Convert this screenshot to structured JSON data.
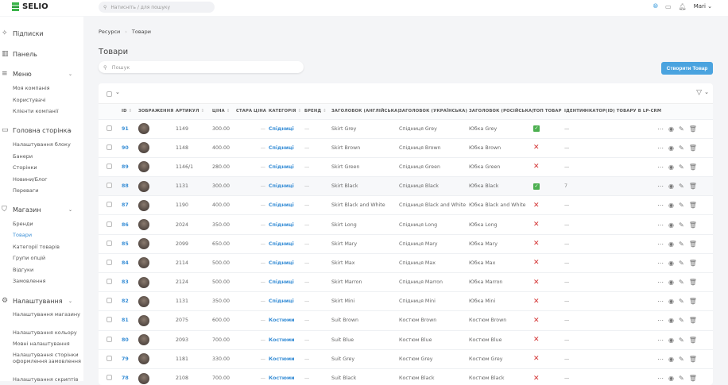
{
  "header": {
    "brand": "SELIO",
    "search_placeholder": "Натисніть / для пошуку",
    "user": "Mari"
  },
  "sidebar": {
    "subscriptions": "Підписки",
    "dashboard": "Панель",
    "menu": {
      "label": "Меню",
      "items": [
        "Моя компанія",
        "Користувачі",
        "Клієнти компанії"
      ]
    },
    "home": {
      "label": "Головна сторінка",
      "items": [
        "Налаштування блоку",
        "Банери",
        "Сторінки",
        "Новини/Блог",
        "Переваги"
      ]
    },
    "shop": {
      "label": "Магазин",
      "items": [
        "Бренди",
        "Товари",
        "Категорії товарів",
        "Групи опцій",
        "Відгуки",
        "Замовлення"
      ],
      "active": "Товари"
    },
    "settings": {
      "label": "Налаштування",
      "items": [
        "Налаштування магазину",
        "Налаштування кольору",
        "Мовні налаштування",
        "Налаштування сторінки оформлення замовлення",
        "Налаштування скриптів"
      ]
    }
  },
  "breadcrumb": [
    "Ресурси",
    "Товари"
  ],
  "page_title": "Товари",
  "search_placeholder": "Пошук",
  "create_button": "Створити Товар",
  "table": {
    "columns": [
      "ID",
      "ЗОБРАЖЕННЯ",
      "АРТИКУЛ",
      "ЦІНА",
      "СТАРА ЦІНА",
      "КАТЕГОРІЯ",
      "БРЕНД",
      "ЗАГОЛОВОК (АНГЛІЙСЬКА)",
      "ЗАГОЛОВОК (УКРАЇНСЬКА)",
      "ЗАГОЛОВОК (РОСІЙСЬКА)",
      "ТОП ТОВАР",
      "ІДЕНТИФІКАТОР(ID) ТОВАРУ В LP-CRM"
    ],
    "rows": [
      {
        "id": "91",
        "sku": "1149",
        "price": "300.00",
        "old": "—",
        "cat": "Спідниці",
        "brand": "—",
        "en": "Skirt Grey",
        "ua": "Спідниця Grey",
        "ru": "Юбка Grey",
        "top": true,
        "crm": "—"
      },
      {
        "id": "90",
        "sku": "1148",
        "price": "400.00",
        "old": "—",
        "cat": "Спідниці",
        "brand": "—",
        "en": "Skirt Brown",
        "ua": "Спідниця Brown",
        "ru": "Юбка Brown",
        "top": false,
        "crm": "—"
      },
      {
        "id": "89",
        "sku": "1146/1",
        "price": "280.00",
        "old": "—",
        "cat": "Спідниці",
        "brand": "—",
        "en": "Skirt Green",
        "ua": "Спідниця Green",
        "ru": "Юбка Green",
        "top": false,
        "crm": "—"
      },
      {
        "id": "88",
        "sku": "1131",
        "price": "300.00",
        "old": "—",
        "cat": "Спідниці",
        "brand": "—",
        "en": "Skirt Black",
        "ua": "Спідниця Black",
        "ru": "Юбка Black",
        "top": true,
        "crm": "7"
      },
      {
        "id": "87",
        "sku": "1190",
        "price": "400.00",
        "old": "—",
        "cat": "Спідниці",
        "brand": "—",
        "en": "Skirt Black and White",
        "ua": "Спідниця Black and White",
        "ru": "Юбка Black and White",
        "top": false,
        "crm": "—"
      },
      {
        "id": "86",
        "sku": "2024",
        "price": "350.00",
        "old": "—",
        "cat": "Спідниці",
        "brand": "—",
        "en": "Skirt Long",
        "ua": "Спідниця Long",
        "ru": "Юбка Long",
        "top": false,
        "crm": "—"
      },
      {
        "id": "85",
        "sku": "2099",
        "price": "650.00",
        "old": "—",
        "cat": "Спідниці",
        "brand": "—",
        "en": "Skirt Mary",
        "ua": "Спідниця Mary",
        "ru": "Юбка Mary",
        "top": false,
        "crm": "—"
      },
      {
        "id": "84",
        "sku": "2114",
        "price": "500.00",
        "old": "—",
        "cat": "Спідниці",
        "brand": "—",
        "en": "Skirt Max",
        "ua": "Спідниця Max",
        "ru": "Юбка Max",
        "top": false,
        "crm": "—"
      },
      {
        "id": "83",
        "sku": "2124",
        "price": "500.00",
        "old": "—",
        "cat": "Спідниці",
        "brand": "—",
        "en": "Skirt Marron",
        "ua": "Спідниця Marron",
        "ru": "Юбка Marron",
        "top": false,
        "crm": "—"
      },
      {
        "id": "82",
        "sku": "1131",
        "price": "350.00",
        "old": "—",
        "cat": "Спідниці",
        "brand": "—",
        "en": "Skirt Mini",
        "ua": "Спідниця Mini",
        "ru": "Юбка Mini",
        "top": false,
        "crm": "—"
      },
      {
        "id": "81",
        "sku": "2075",
        "price": "600.00",
        "old": "—",
        "cat": "Костюми",
        "brand": "—",
        "en": "Suit Brown",
        "ua": "Костюм Brown",
        "ru": "Костюм Brown",
        "top": false,
        "crm": "—"
      },
      {
        "id": "80",
        "sku": "2093",
        "price": "700.00",
        "old": "—",
        "cat": "Костюми",
        "brand": "—",
        "en": "Suit Blue",
        "ua": "Костюм Blue",
        "ru": "Костюм Blue",
        "top": false,
        "crm": "—"
      },
      {
        "id": "79",
        "sku": "1181",
        "price": "330.00",
        "old": "—",
        "cat": "Костюми",
        "brand": "—",
        "en": "Suit Grey",
        "ua": "Костюм Grey",
        "ru": "Костюм Grey",
        "top": false,
        "crm": "—"
      },
      {
        "id": "78",
        "sku": "2108",
        "price": "700.00",
        "old": "—",
        "cat": "Костюми",
        "brand": "—",
        "en": "Suit Black",
        "ua": "Костюм Black",
        "ru": "Костюм Black",
        "top": false,
        "crm": "—"
      }
    ]
  },
  "colors": {
    "accent": "#4aa3df",
    "link": "#3a8fd6",
    "ok": "#4caf50",
    "no": "#d32f2f"
  }
}
